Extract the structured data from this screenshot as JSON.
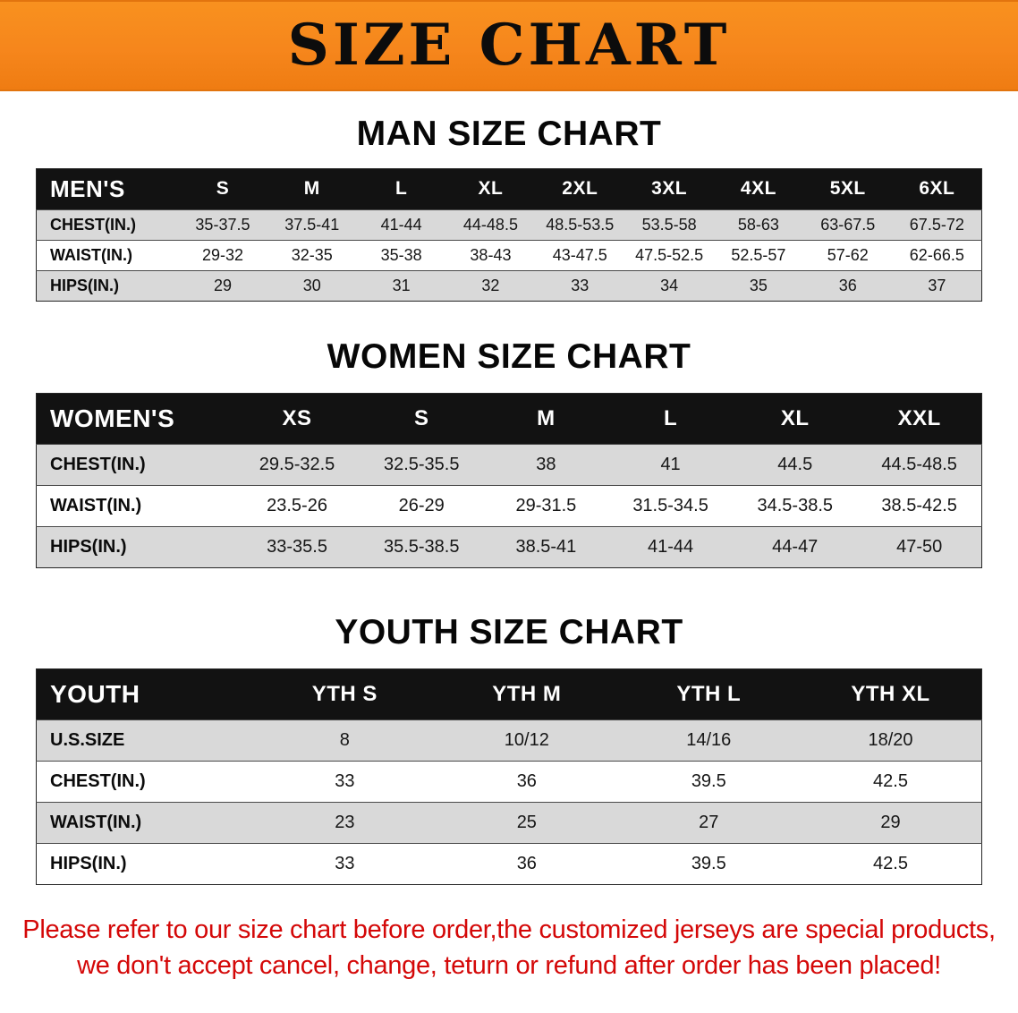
{
  "banner": {
    "title": "SIZE CHART"
  },
  "colors": {
    "banner_orange": "#f6861c",
    "header_black": "#121212",
    "row_gray": "#d9d9d9",
    "disclaimer_red": "#d40808"
  },
  "sections": [
    {
      "id": "men",
      "heading": "MAN SIZE CHART",
      "table": {
        "header": [
          "MEN'S",
          "S",
          "M",
          "L",
          "XL",
          "2XL",
          "3XL",
          "4XL",
          "5XL",
          "6XL"
        ],
        "rows": [
          [
            "CHEST(IN.)",
            "35-37.5",
            "37.5-41",
            "41-44",
            "44-48.5",
            "48.5-53.5",
            "53.5-58",
            "58-63",
            "63-67.5",
            "67.5-72"
          ],
          [
            "WAIST(IN.)",
            "29-32",
            "32-35",
            "35-38",
            "38-43",
            "43-47.5",
            "47.5-52.5",
            "52.5-57",
            "57-62",
            "62-66.5"
          ],
          [
            "HIPS(IN.)",
            "29",
            "30",
            "31",
            "32",
            "33",
            "34",
            "35",
            "36",
            "37"
          ]
        ]
      }
    },
    {
      "id": "women",
      "heading": "WOMEN SIZE CHART",
      "table": {
        "header": [
          "WOMEN'S",
          "XS",
          "S",
          "M",
          "L",
          "XL",
          "XXL"
        ],
        "rows": [
          [
            "CHEST(IN.)",
            "29.5-32.5",
            "32.5-35.5",
            "38",
            "41",
            "44.5",
            "44.5-48.5"
          ],
          [
            "WAIST(IN.)",
            "23.5-26",
            "26-29",
            "29-31.5",
            "31.5-34.5",
            "34.5-38.5",
            "38.5-42.5"
          ],
          [
            "HIPS(IN.)",
            "33-35.5",
            "35.5-38.5",
            "38.5-41",
            "41-44",
            "44-47",
            "47-50"
          ]
        ]
      }
    },
    {
      "id": "youth",
      "heading": "YOUTH SIZE CHART",
      "table": {
        "header": [
          "YOUTH",
          "YTH S",
          "YTH M",
          "YTH L",
          "YTH XL"
        ],
        "rows": [
          [
            "U.S.SIZE",
            "8",
            "10/12",
            "14/16",
            "18/20"
          ],
          [
            "CHEST(IN.)",
            "33",
            "36",
            "39.5",
            "42.5"
          ],
          [
            "WAIST(IN.)",
            "23",
            "25",
            "27",
            "29"
          ],
          [
            "HIPS(IN.)",
            "33",
            "36",
            "39.5",
            "42.5"
          ]
        ]
      }
    }
  ],
  "disclaimer": {
    "line1": "Please refer to our size chart before order,the customized jerseys are special products,",
    "line2": "we don't accept cancel, change, teturn or refund after order has been placed!"
  }
}
